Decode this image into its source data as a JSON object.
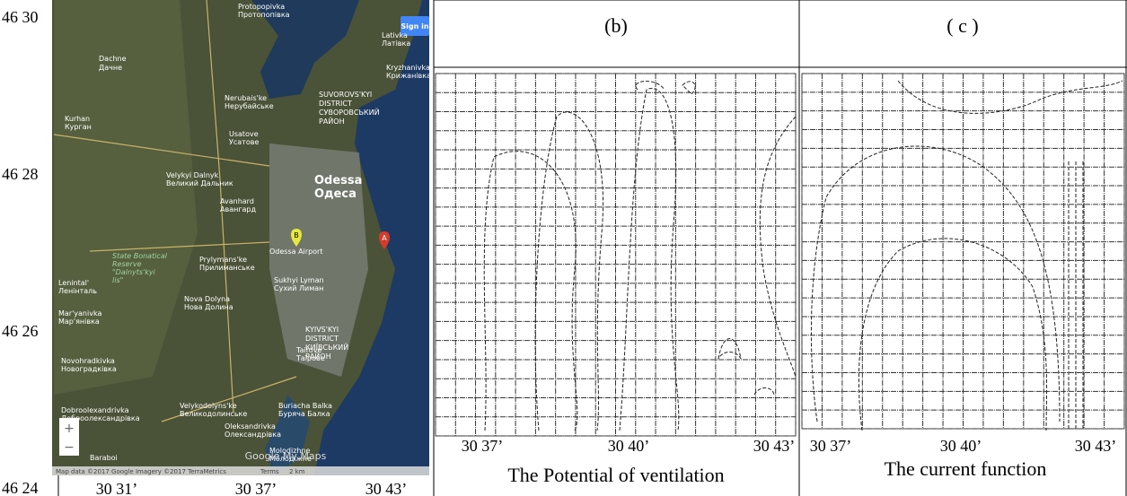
{
  "map": {
    "lat_labels": [
      "46 30",
      "46 28",
      "46 26",
      "46 24"
    ],
    "lon_labels": [
      "30 31’",
      "30 37’",
      "30 43’"
    ],
    "sign_in": "Sign in",
    "places": [
      "Dachne",
      "Дачне",
      "Nerubais'ke",
      "Нерубайське",
      "Kurhan",
      "Курган",
      "Usatove",
      "Усатове",
      "SUVOROVS'KYI",
      "DISTRICT",
      "СУВОРОВСЬКИЙ",
      "РАЙОН",
      "Velykyi Dalnyk",
      "Великий Дальник",
      "Odessa",
      "Одеса",
      "Avanhard",
      "Авангард",
      "State Bonatical",
      "Reserve",
      "\"Dalnyts'kyi",
      "lis\"",
      "Prylymans'ke",
      "Прилиманське",
      "Nova Dolyna",
      "Нова Долина",
      "Sukhyi Lyman",
      "Сухий Лиман",
      "KYIVS'KYI",
      "DISTRICT",
      "КИЇВСЬКИЙ",
      "РАЙОН",
      "Tairove",
      "Таїрове",
      "Novohradkivka",
      "Новоградківка",
      "Dobroolexandrivka",
      "Доброолександрівка",
      "Velykodolyns'ke",
      "Великодолинське",
      "Buriacha Balka",
      "Буряча Балка",
      "Oleksandrivka",
      "Олександрівка",
      "Molodizhne",
      "Молодіжне",
      "Baraboi",
      "Lenintal'",
      "Ленінталь",
      "Mar'yanivka",
      "Мар'янівка",
      "Lativka",
      "Латівка",
      "Kryzhanivka",
      "Крижанівка",
      "Odessa Airport",
      "Protopopivka",
      "Протопопівка"
    ],
    "markers": [
      "B",
      "A"
    ],
    "zoom_in": "+",
    "zoom_out": "−",
    "attribution": "Map data ©2017 Google Imagery ©2017 TerraMetrics",
    "terms": "Terms",
    "scale": "2 km",
    "logo": "Google My Maps"
  },
  "panel_b": {
    "label": "(b)",
    "x_labels": [
      "30 37’",
      "30 40’",
      "30 43’"
    ],
    "caption": "The Potential of ventilation"
  },
  "panel_c": {
    "label": "( c )",
    "x_labels": [
      "30 37’",
      "30 40’",
      "30 43’"
    ],
    "caption": "The current function"
  }
}
